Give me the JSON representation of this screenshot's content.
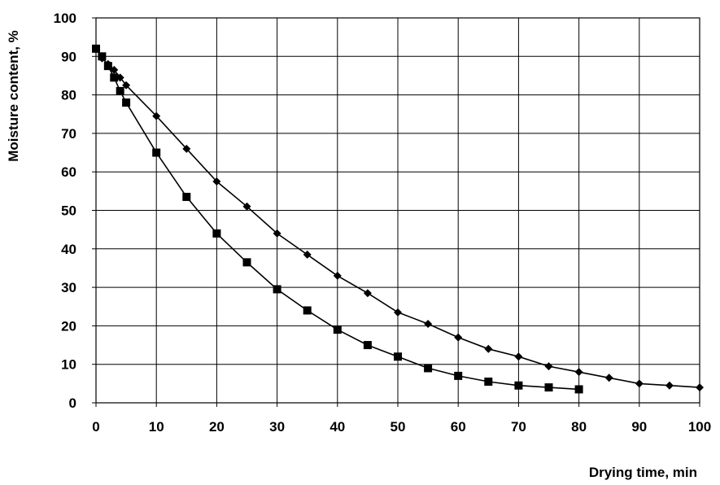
{
  "chart_data": {
    "type": "scatter",
    "title": "",
    "xlabel": "Drying time, min",
    "ylabel": "Moisture content, %",
    "xlim": [
      0,
      100
    ],
    "ylim": [
      0,
      100
    ],
    "xticks": [
      0,
      10,
      20,
      30,
      40,
      50,
      60,
      70,
      80,
      90,
      100
    ],
    "yticks": [
      0,
      10,
      20,
      30,
      40,
      50,
      60,
      70,
      80,
      90,
      100
    ],
    "grid": true,
    "legend": "none",
    "series": [
      {
        "marker": "diamond",
        "color": "#000000",
        "x": [
          0,
          1,
          2,
          3,
          4,
          5,
          10,
          15,
          20,
          25,
          30,
          35,
          40,
          45,
          50,
          55,
          60,
          65,
          70,
          75,
          80,
          85,
          90,
          95,
          100
        ],
        "y": [
          92,
          89.5,
          88,
          86.5,
          84.5,
          82.5,
          74.5,
          66,
          57.5,
          51,
          44,
          38.5,
          33,
          28.5,
          23.5,
          20.5,
          17,
          14,
          12,
          9.5,
          8,
          6.5,
          5,
          4.5,
          4
        ]
      },
      {
        "marker": "square",
        "color": "#000000",
        "x": [
          0,
          1,
          2,
          3,
          4,
          5,
          10,
          15,
          20,
          25,
          30,
          35,
          40,
          45,
          50,
          55,
          60,
          65,
          70,
          75,
          80
        ],
        "y": [
          92,
          90,
          87.5,
          84.5,
          81,
          78,
          65,
          53.5,
          44,
          36.5,
          29.5,
          24,
          19,
          15,
          12,
          9,
          7,
          5.5,
          4.5,
          4,
          3.5
        ]
      }
    ]
  }
}
